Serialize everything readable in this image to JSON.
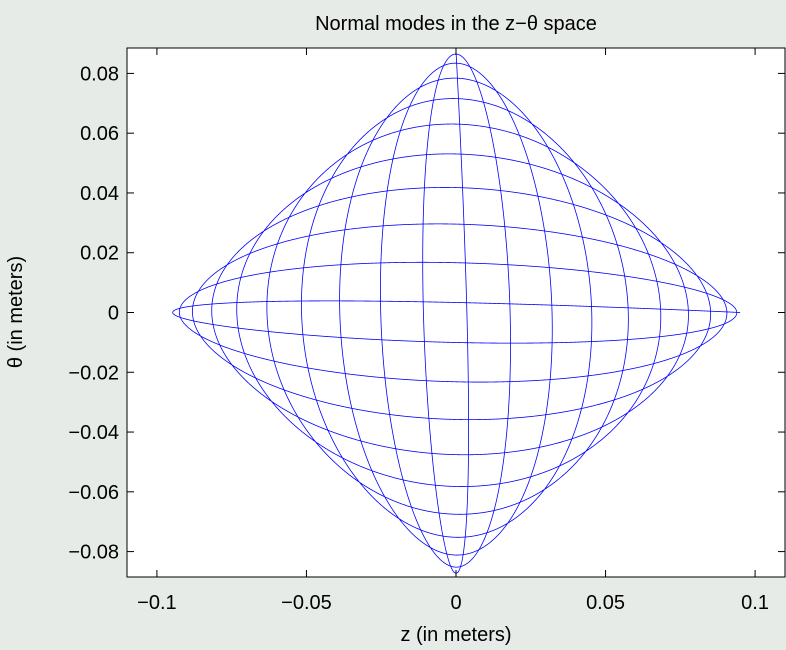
{
  "chart_data": {
    "type": "line",
    "title": "Normal modes in the z−θ space",
    "xlabel": "z (in meters)",
    "ylabel": "θ (in meters)",
    "xlim": [
      -0.11,
      0.11
    ],
    "ylim": [
      -0.0885,
      0.0885
    ],
    "xticks": [
      -0.1,
      -0.05,
      0,
      0.05,
      0.1
    ],
    "xtick_labels": [
      "−0.1",
      "−0.05",
      "0",
      "0.05",
      "0.1"
    ],
    "yticks": [
      -0.08,
      -0.06,
      -0.04,
      -0.02,
      0,
      0.02,
      0.04,
      0.06,
      0.08
    ],
    "ytick_labels": [
      "−0.08",
      "−0.06",
      "−0.04",
      "−0.02",
      "0",
      "0.02",
      "0.04",
      "0.06",
      "0.08"
    ],
    "grid": false,
    "series": [
      {
        "color": "#0000ff",
        "z_amplitude": 0.095,
        "theta_amplitude": 0.0875,
        "frequency_ratio": [
          1,
          1.05
        ],
        "description_of_shape": "Lissajous trajectory filling a diamond with vertices at (±0.095, 0) and (0, ±0.0875)"
      }
    ]
  }
}
